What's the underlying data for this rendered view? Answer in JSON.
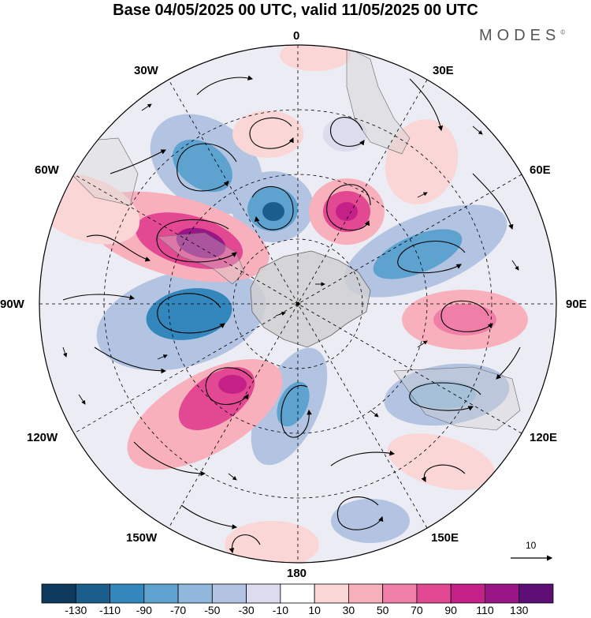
{
  "title": "Base 04/05/2025 00 UTC, valid 11/05/2025 00 UTC",
  "brand": "MODES",
  "brand_mark": "©",
  "longitude_labels": {
    "lon0": "0",
    "lon30e": "30E",
    "lon60e": "60E",
    "lon90e": "90E",
    "lon120e": "120E",
    "lon150e": "150E",
    "lon180": "180",
    "lon150w": "150W",
    "lon120w": "120W",
    "lon90w": "90W",
    "lon60w": "60W",
    "lon30w": "30W"
  },
  "vector_scale_label": "10",
  "colorbar": {
    "colors": [
      "#0d3a5c",
      "#1a5f8c",
      "#3387bd",
      "#5ea3cf",
      "#8fb8dc",
      "#b3c4e2",
      "#dcdcee",
      "#ffffff",
      "#fad6d6",
      "#f7b0bc",
      "#ef7fa6",
      "#e34993",
      "#c51f88",
      "#9a1586",
      "#5e0f76"
    ],
    "labels": [
      "-130",
      "-110",
      "-90",
      "-70",
      "-50",
      "-30",
      "-10",
      "10",
      "30",
      "50",
      "70",
      "90",
      "110",
      "130"
    ]
  },
  "colors": {
    "land": "#cfcfcf",
    "coast": "#666666",
    "background": "#ffffff"
  }
}
